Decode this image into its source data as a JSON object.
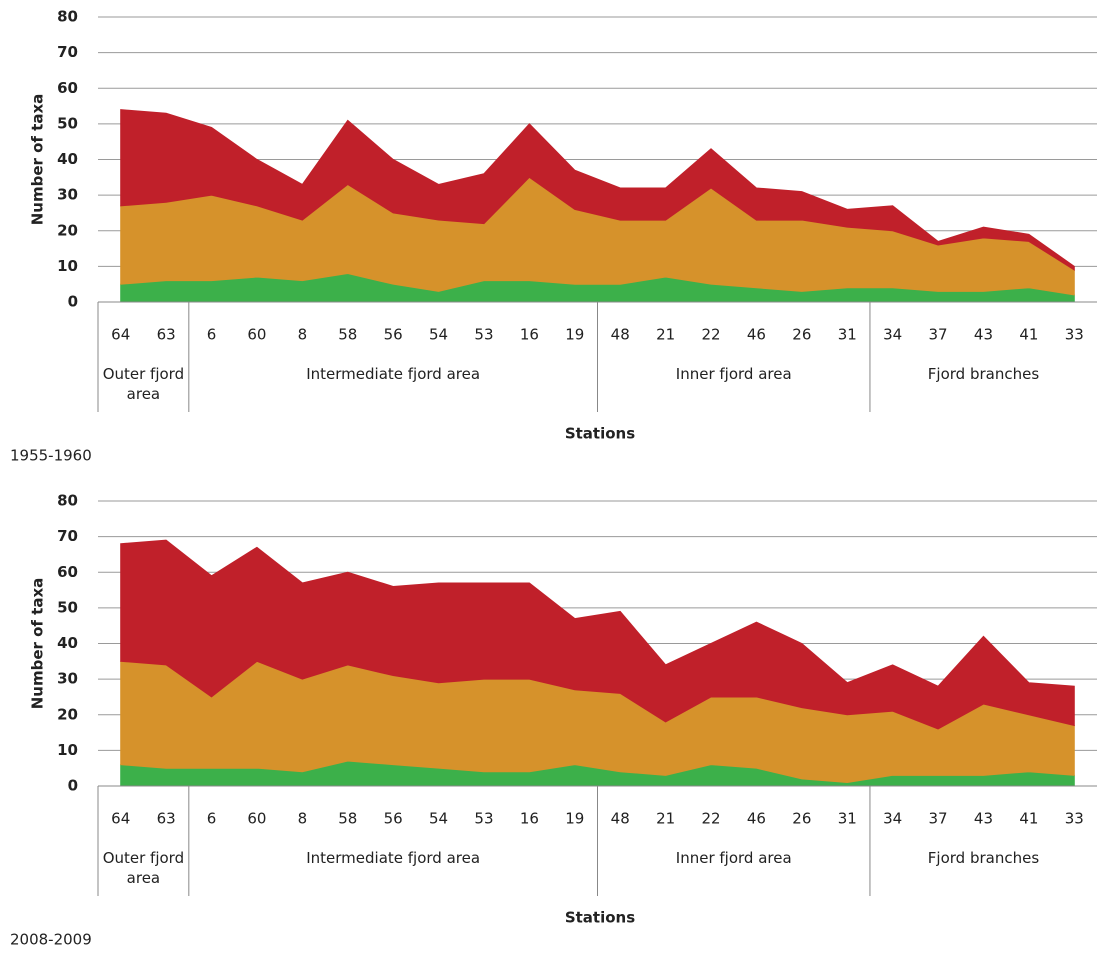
{
  "chart_data": [
    {
      "type": "stacked-area",
      "title": "1955-1960",
      "ylabel": "Number of taxa",
      "xlabel": "Stations",
      "categories": [
        "64",
        "63",
        "6",
        "60",
        "8",
        "58",
        "56",
        "54",
        "53",
        "16",
        "19",
        "48",
        "21",
        "22",
        "46",
        "26",
        "31",
        "34",
        "37",
        "43",
        "41",
        "33"
      ],
      "groups": [
        {
          "label": "Outer fjord area",
          "size": 2
        },
        {
          "label": "Intermediate fjord area",
          "size": 9
        },
        {
          "label": "Inner fjord area",
          "size": 6
        },
        {
          "label": "Fjord branches",
          "size": 5
        }
      ],
      "series": [
        {
          "color": "#3cb04a",
          "values": [
            5,
            6,
            6,
            7,
            6,
            8,
            5,
            3,
            6,
            6,
            5,
            5,
            7,
            5,
            4,
            3,
            4,
            4,
            3,
            3,
            4,
            2
          ]
        },
        {
          "color": "#d6922b",
          "values": [
            22,
            22,
            24,
            20,
            17,
            25,
            20,
            20,
            16,
            29,
            21,
            18,
            16,
            27,
            19,
            20,
            17,
            16,
            13,
            15,
            13,
            7
          ]
        },
        {
          "color": "#c0202a",
          "values": [
            27,
            25,
            19,
            13,
            10,
            18,
            15,
            10,
            14,
            15,
            11,
            9,
            9,
            11,
            9,
            8,
            5,
            7,
            1,
            3,
            2,
            1
          ]
        }
      ],
      "ylim": [
        0,
        80
      ],
      "yticks": [
        0,
        10,
        20,
        30,
        40,
        50,
        60,
        70,
        80
      ],
      "grid": true
    },
    {
      "type": "stacked-area",
      "title": "2008-2009",
      "ylabel": "Number of taxa",
      "xlabel": "Stations",
      "categories": [
        "64",
        "63",
        "6",
        "60",
        "8",
        "58",
        "56",
        "54",
        "53",
        "16",
        "19",
        "48",
        "21",
        "22",
        "46",
        "26",
        "31",
        "34",
        "37",
        "43",
        "41",
        "33"
      ],
      "groups": [
        {
          "label": "Outer fjord area",
          "size": 2
        },
        {
          "label": "Intermediate fjord area",
          "size": 9
        },
        {
          "label": "Inner fjord area",
          "size": 6
        },
        {
          "label": "Fjord branches",
          "size": 5
        }
      ],
      "series": [
        {
          "color": "#3cb04a",
          "values": [
            6,
            5,
            5,
            5,
            4,
            7,
            6,
            5,
            4,
            4,
            6,
            4,
            3,
            6,
            5,
            2,
            1,
            3,
            3,
            3,
            4,
            3
          ]
        },
        {
          "color": "#d6922b",
          "values": [
            29,
            29,
            20,
            30,
            26,
            27,
            25,
            24,
            26,
            26,
            21,
            22,
            15,
            19,
            20,
            20,
            19,
            18,
            13,
            20,
            16,
            14
          ]
        },
        {
          "color": "#c0202a",
          "values": [
            33,
            35,
            34,
            32,
            27,
            26,
            25,
            28,
            27,
            27,
            20,
            23,
            16,
            15,
            21,
            18,
            9,
            13,
            12,
            19,
            9,
            11
          ]
        }
      ],
      "ylim": [
        0,
        80
      ],
      "yticks": [
        0,
        10,
        20,
        30,
        40,
        50,
        60,
        70,
        80
      ],
      "grid": true
    }
  ]
}
